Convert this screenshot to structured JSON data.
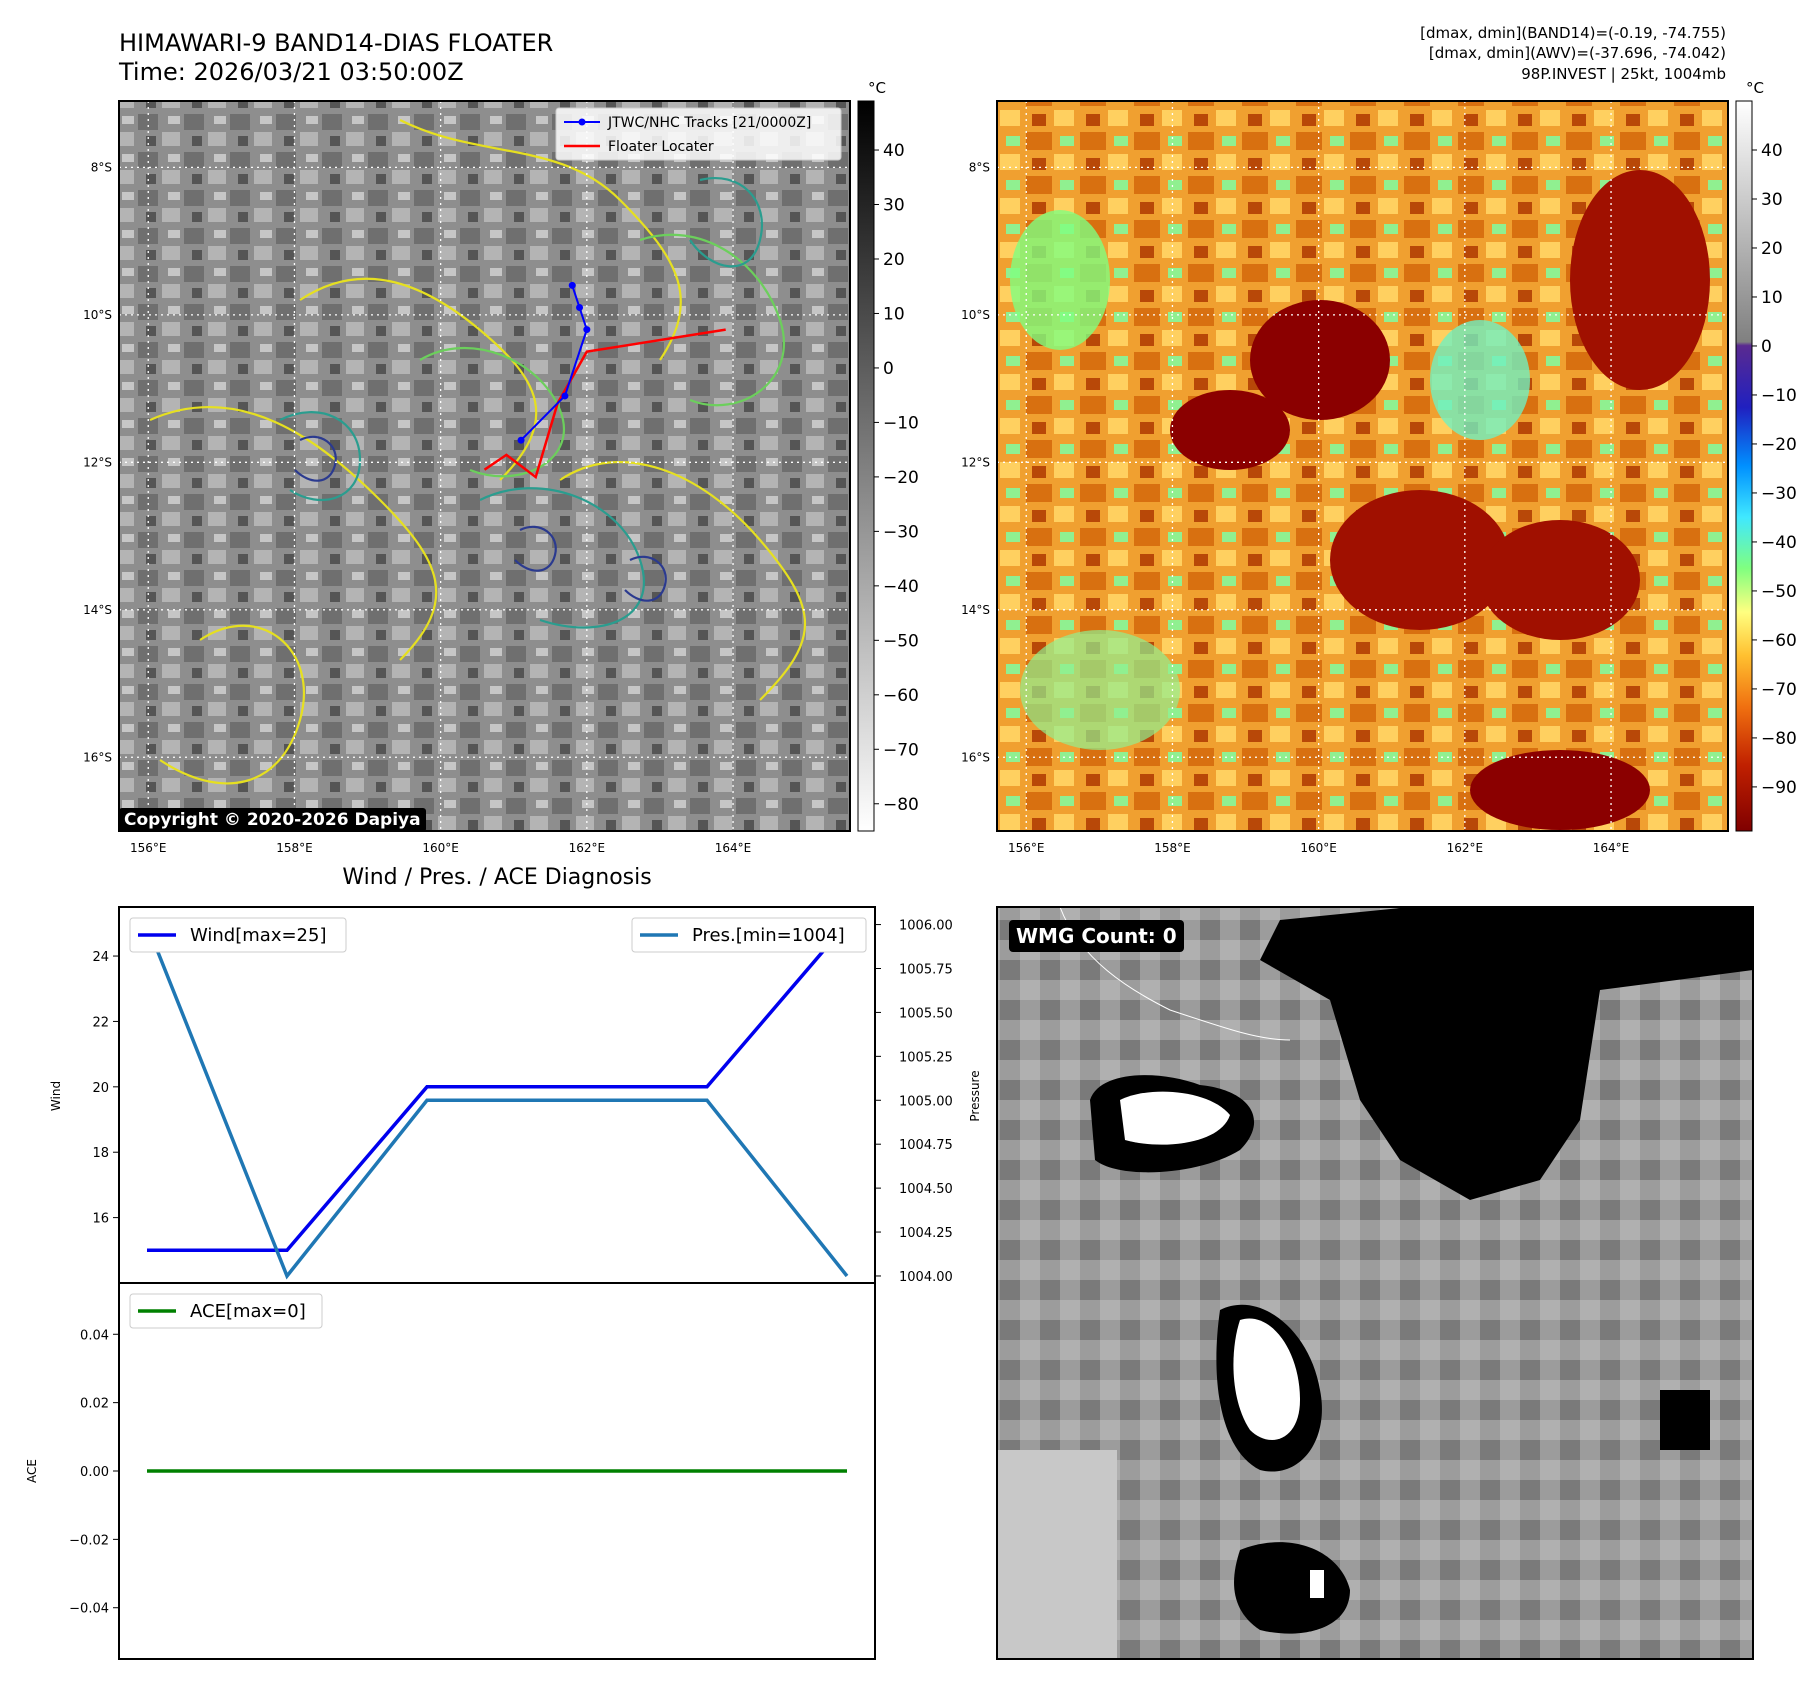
{
  "header": {
    "title": "HIMAWARI-9 BAND14-DIAS FLOATER",
    "time": "Time: 2026/03/21 03:50:00Z",
    "info_line1": "[dmax, dmin](BAND14)=(-0.19, -74.755)",
    "info_line2": "[dmax, dmin](AWV)=(-37.696, -74.042)",
    "info_line3": "98P.INVEST | 25kt, 1004mb"
  },
  "map_axes": {
    "lat_labels": [
      "8°S",
      "10°S",
      "12°S",
      "14°S",
      "16°S"
    ],
    "lon_labels": [
      "156°E",
      "158°E",
      "160°E",
      "162°E",
      "164°E"
    ],
    "lat_values": [
      -8,
      -10,
      -12,
      -14,
      -16
    ],
    "lon_values": [
      156,
      158,
      160,
      162,
      164
    ],
    "lat_range": [
      -17.0,
      -7.1
    ],
    "lon_range": [
      155.6,
      165.6
    ]
  },
  "band14_colorbar": {
    "unit": "°C",
    "ticks": [
      40,
      30,
      20,
      10,
      0,
      -10,
      -20,
      -30,
      -40,
      -50,
      -60,
      -70,
      -80
    ],
    "range": [
      -85,
      49
    ],
    "colors": [
      "#ffffff",
      "#000000"
    ]
  },
  "awv_colorbar": {
    "unit": "°C",
    "ticks": [
      40,
      30,
      20,
      10,
      0,
      -10,
      -20,
      -30,
      -40,
      -50,
      -60,
      -70,
      -80,
      -90
    ],
    "range": [
      -99,
      50
    ],
    "gray_above": 0,
    "colors": [
      "#8b0000",
      "#c03000",
      "#ff7700",
      "#ffd030",
      "#ffff80",
      "#80ff80",
      "#40e0ff",
      "#0080ff",
      "#4020a0",
      "#a0a0a0",
      "#ffffff"
    ]
  },
  "legend_map": {
    "track_label": "JTWC/NHC Tracks [21/0000Z]",
    "floater_label": "Floater Locater",
    "track_color": "#0000ff",
    "floater_color": "#ff0000"
  },
  "tracks": {
    "jtwc": [
      [
        161.8,
        -9.6
      ],
      [
        161.9,
        -9.9
      ],
      [
        162.0,
        -10.2
      ],
      [
        161.7,
        -11.1
      ],
      [
        161.1,
        -11.7
      ]
    ],
    "floater": [
      [
        163.9,
        -10.2
      ],
      [
        162.0,
        -10.5
      ],
      [
        161.6,
        -11.2
      ],
      [
        161.3,
        -12.2
      ],
      [
        160.9,
        -11.9
      ],
      [
        160.6,
        -12.1
      ]
    ]
  },
  "copyright": "Copyright © 2020-2026 Dapiya",
  "diagnosis": {
    "title": "Wind / Pres. / ACE Diagnosis",
    "wind_ylabel": "Wind",
    "pres_ylabel": "Pressure",
    "ace_ylabel": "ACE",
    "wind_legend": "Wind[max=25]",
    "pres_legend": "Pres.[min=1004]",
    "ace_legend": "ACE[max=0]",
    "wind_ticks": [
      24,
      22,
      20,
      18,
      16
    ],
    "wind_ylim": [
      14.0,
      25.5
    ],
    "pres_ticks": [
      "1006.00",
      "1005.75",
      "1005.50",
      "1005.25",
      "1005.00",
      "1004.75",
      "1004.50",
      "1004.25",
      "1004.00"
    ],
    "pres_ylim": [
      1003.96,
      1006.1
    ],
    "ace_ticks": [
      "0.04",
      "0.02",
      "0.00",
      "−0.02",
      "−0.04"
    ],
    "ace_ylim": [
      -0.055,
      0.055
    ]
  },
  "chart_data": [
    {
      "type": "line",
      "title": "Wind / Pres. / ACE Diagnosis",
      "x": [
        0,
        1,
        2,
        3,
        4,
        5
      ],
      "xlim": [
        -0.2,
        5.2
      ],
      "series": [
        {
          "name": "Wind[max=25]",
          "axis": "left",
          "ylabel": "Wind",
          "color": "#0000ee",
          "values": [
            15,
            15,
            20,
            20,
            20,
            25
          ]
        },
        {
          "name": "Pres.[min=1004]",
          "axis": "right",
          "ylabel": "Pressure",
          "color": "#1f77b4",
          "values": [
            1006,
            1004,
            1005,
            1005,
            1005,
            1004
          ]
        }
      ]
    },
    {
      "type": "line",
      "x": [
        0,
        1,
        2,
        3,
        4,
        5
      ],
      "xlim": [
        -0.2,
        5.2
      ],
      "series": [
        {
          "name": "ACE[max=0]",
          "ylabel": "ACE",
          "color": "#008000",
          "values": [
            0,
            0,
            0,
            0,
            0,
            0
          ]
        }
      ]
    }
  ],
  "wmg": {
    "label": "WMG Count: 0"
  }
}
